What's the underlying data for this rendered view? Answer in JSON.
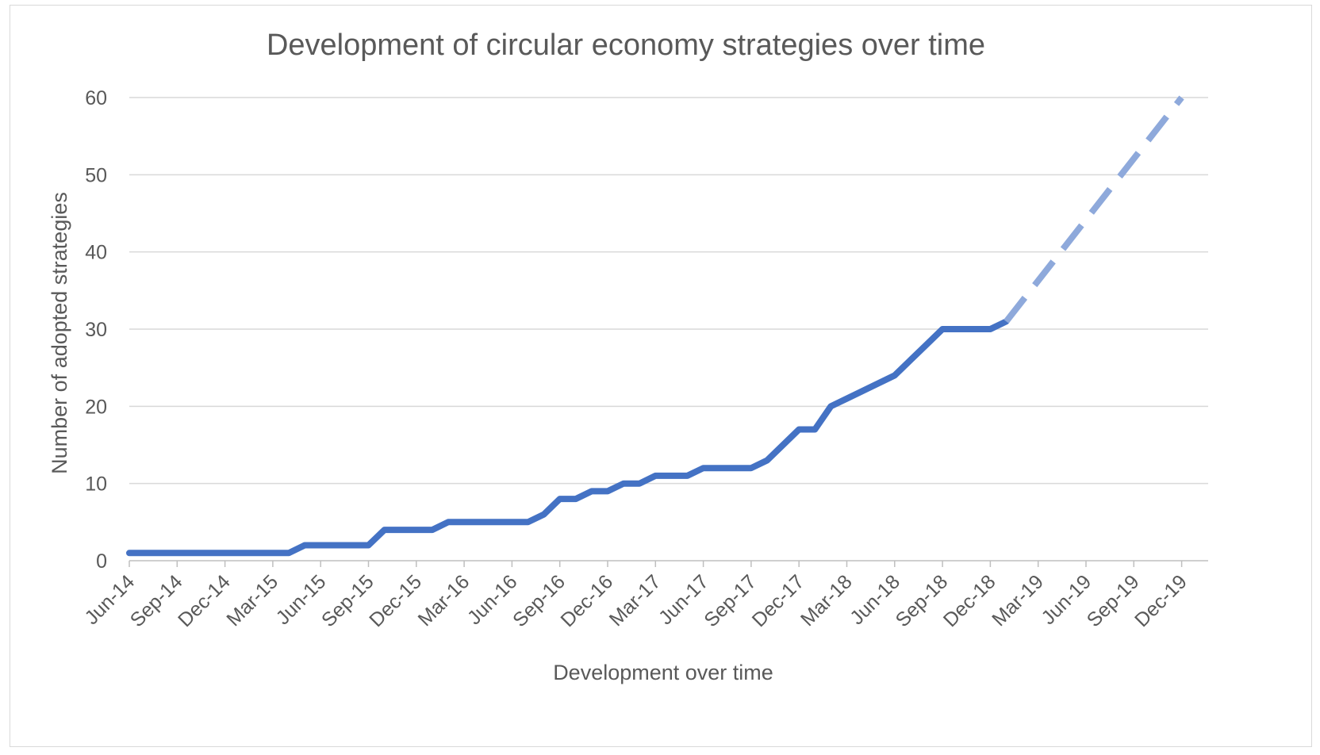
{
  "chart_data": {
    "type": "line",
    "title": "Development of circular economy strategies over time",
    "xlabel": "Development over time",
    "ylabel": "Number of adopted strategies",
    "ylim": [
      0,
      60
    ],
    "yticks": [
      0,
      10,
      20,
      30,
      40,
      50,
      60
    ],
    "x_tick_labels": [
      "Jun-14",
      "Sep-14",
      "Dec-14",
      "Mar-15",
      "Jun-15",
      "Sep-15",
      "Dec-15",
      "Mar-16",
      "Jun-16",
      "Sep-16",
      "Dec-16",
      "Mar-17",
      "Jun-17",
      "Sep-17",
      "Dec-17",
      "Mar-18",
      "Jun-18",
      "Sep-18",
      "Dec-18",
      "Mar-19",
      "Jun-19",
      "Sep-19",
      "Dec-19"
    ],
    "grid": true,
    "legend": "none",
    "series": [
      {
        "style": "solid",
        "color": "#4472C4",
        "x": [
          "Jun-14",
          "Jul-14",
          "Aug-14",
          "Sep-14",
          "Oct-14",
          "Nov-14",
          "Dec-14",
          "Jan-15",
          "Feb-15",
          "Mar-15",
          "Apr-15",
          "May-15",
          "Jun-15",
          "Jul-15",
          "Aug-15",
          "Sep-15",
          "Oct-15",
          "Nov-15",
          "Dec-15",
          "Jan-16",
          "Feb-16",
          "Mar-16",
          "Apr-16",
          "May-16",
          "Jun-16",
          "Jul-16",
          "Aug-16",
          "Sep-16",
          "Oct-16",
          "Nov-16",
          "Dec-16",
          "Jan-17",
          "Feb-17",
          "Mar-17",
          "Apr-17",
          "May-17",
          "Jun-17",
          "Jul-17",
          "Aug-17",
          "Sep-17",
          "Oct-17",
          "Nov-17",
          "Dec-17",
          "Jan-18",
          "Feb-18",
          "Mar-18",
          "Apr-18",
          "May-18",
          "Jun-18",
          "Jul-18",
          "Aug-18",
          "Sep-18",
          "Oct-18",
          "Nov-18",
          "Dec-18",
          "Jan-19"
        ],
        "y": [
          1,
          1,
          1,
          1,
          1,
          1,
          1,
          1,
          1,
          1,
          1,
          2,
          2,
          2,
          2,
          2,
          4,
          4,
          4,
          4,
          5,
          5,
          5,
          5,
          5,
          5,
          6,
          8,
          8,
          9,
          9,
          10,
          10,
          11,
          11,
          11,
          12,
          12,
          12,
          12,
          13,
          15,
          17,
          17,
          20,
          21,
          22,
          23,
          24,
          26,
          28,
          30,
          30,
          30,
          30,
          31
        ]
      },
      {
        "style": "dashed",
        "color": "#8EA9DB",
        "x": [
          "Jan-19",
          "Dec-19"
        ],
        "y": [
          31,
          60
        ]
      }
    ]
  }
}
